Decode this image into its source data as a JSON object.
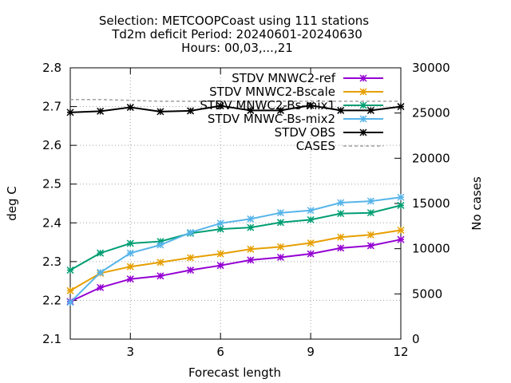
{
  "chart_data": {
    "type": "line",
    "title_lines": [
      "Selection: METCOOPCoast using   111 stations",
      "Td2m deficit   Period: 20240601-20240630",
      "Hours: 00,03,...,21"
    ],
    "xlabel": "Forecast length",
    "ylabel": "deg C",
    "y2label": "No cases",
    "xlim": [
      1,
      12
    ],
    "ylim": [
      2.1,
      2.8
    ],
    "y2lim": [
      0,
      30000
    ],
    "xticks": [
      3,
      6,
      9,
      12
    ],
    "yticks": [
      2.1,
      2.2,
      2.3,
      2.4,
      2.5,
      2.6,
      2.7,
      2.8
    ],
    "y2ticks": [
      0,
      5000,
      10000,
      15000,
      20000,
      25000,
      30000
    ],
    "grid": true,
    "legend_position": "top-right",
    "x": [
      1,
      2,
      3,
      4,
      5,
      6,
      7,
      8,
      9,
      10,
      11,
      12
    ],
    "series": [
      {
        "name": "STDV MNWC2-ref",
        "color": "#9400d3",
        "marker": "star",
        "axis": "y",
        "values": [
          2.197,
          2.233,
          2.255,
          2.263,
          2.278,
          2.29,
          2.304,
          2.311,
          2.32,
          2.335,
          2.341,
          2.357
        ]
      },
      {
        "name": "STDV MNWC2-Bscale",
        "color": "#e69f00",
        "marker": "star",
        "axis": "y",
        "values": [
          2.225,
          2.27,
          2.287,
          2.298,
          2.31,
          2.32,
          2.332,
          2.338,
          2.348,
          2.363,
          2.369,
          2.381
        ]
      },
      {
        "name": "STDV MNWC2-Bs-mix1",
        "color": "#009e73",
        "marker": "star",
        "axis": "y",
        "values": [
          2.278,
          2.322,
          2.347,
          2.352,
          2.373,
          2.384,
          2.388,
          2.401,
          2.408,
          2.424,
          2.426,
          2.445
        ]
      },
      {
        "name": "STDV MNWC-Bs-mix2",
        "color": "#56b4e9",
        "marker": "star",
        "axis": "y",
        "values": [
          2.195,
          2.272,
          2.322,
          2.343,
          2.375,
          2.399,
          2.41,
          2.426,
          2.432,
          2.452,
          2.456,
          2.466
        ]
      },
      {
        "name": "STDV OBS",
        "color": "#000000",
        "marker": "star",
        "axis": "y",
        "values": [
          2.685,
          2.688,
          2.698,
          2.687,
          2.689,
          2.702,
          2.69,
          2.69,
          2.703,
          2.69,
          2.69,
          2.7
        ]
      },
      {
        "name": "CASES",
        "color": "#a0a0a0",
        "marker": "none",
        "dash": true,
        "axis": "y2",
        "values": [
          26500,
          26500,
          26400,
          26300,
          26300,
          26300,
          26300,
          26300,
          26300,
          26300,
          26300,
          26300
        ]
      }
    ]
  }
}
